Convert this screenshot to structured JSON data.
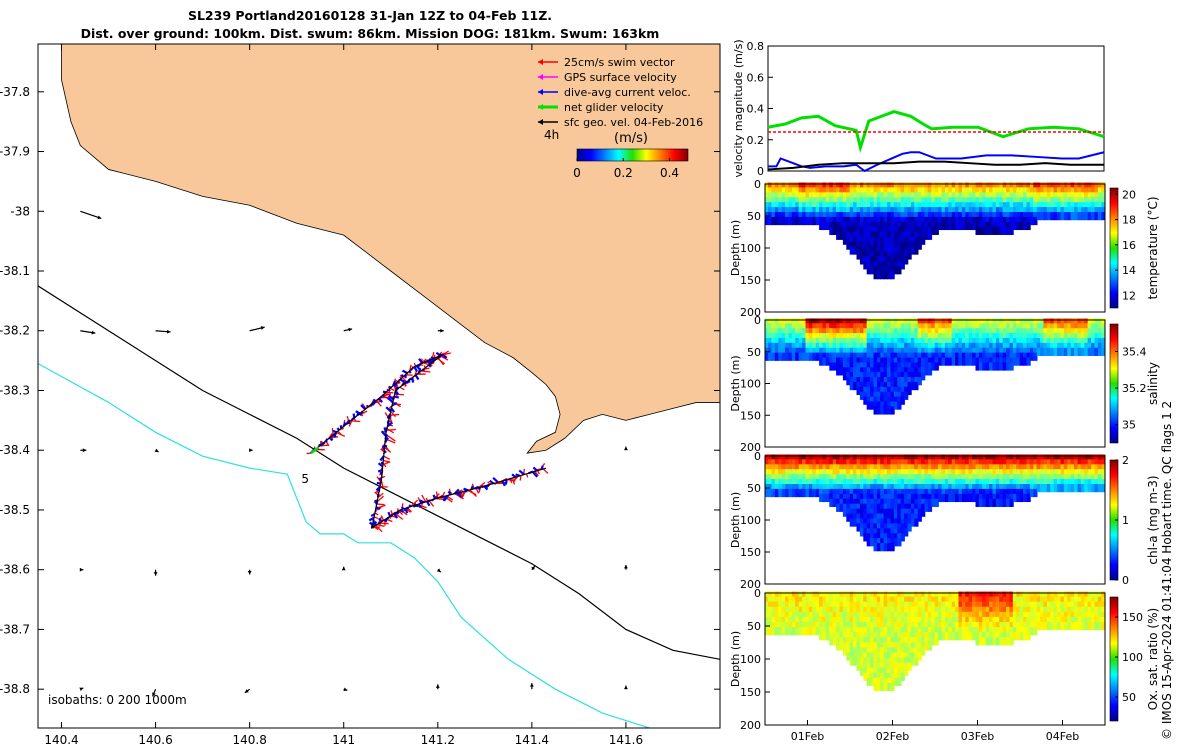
{
  "title_line1": "SL239 Portland20160128 31-Jan 12Z to 04-Feb 11Z.",
  "title_line2": "Dist. over ground: 100km. Dist. swum: 86km. Mission DOG: 181km. Swum: 163km",
  "stamp": "© IMOS 15-Apr-2024 01:41:04 Hobart time. QC flags 1  2",
  "colors": {
    "land": "#F9C89A",
    "isobath200": "#000000",
    "isobath1000": "#2EE0E0",
    "swim": "#FF0000",
    "gps": "#FF00FF",
    "current": "#0000FF",
    "net": "#00E000",
    "geo": "#000000"
  },
  "chart_data": [
    {
      "type": "map",
      "xlim": [
        140.35,
        141.8
      ],
      "ylim": [
        -38.865,
        -37.72
      ],
      "x_ticks": [
        "140.4",
        "140.6",
        "140.8",
        "141",
        "141.2",
        "141.4",
        "141.6"
      ],
      "x_tick_values": [
        140.4,
        140.6,
        140.8,
        141.0,
        141.2,
        141.4,
        141.6
      ],
      "y_ticks": [
        "-37.8",
        "-37.9",
        "-38",
        "-38.1",
        "-38.2",
        "-38.3",
        "-38.4",
        "-38.5",
        "-38.6",
        "-38.7",
        "-38.8"
      ],
      "y_tick_values": [
        -37.8,
        -37.9,
        -38.0,
        -38.1,
        -38.2,
        -38.3,
        -38.4,
        -38.5,
        -38.6,
        -38.7,
        -38.8
      ],
      "legend": [
        {
          "label": "25cm/s swim vector",
          "color": "#FF0000"
        },
        {
          "label": "GPS surface velocity",
          "color": "#FF00FF"
        },
        {
          "label": "dive-avg current veloc.",
          "color": "#0000FF"
        },
        {
          "label": "net glider velocity",
          "color": "#00E000"
        },
        {
          "label": "sfc geo. vel. 04-Feb-2016",
          "color": "#000000"
        }
      ],
      "time_label": "4h",
      "colorbar": {
        "label": "(m/s)",
        "ticks": [
          "0",
          "0.2",
          "0.4"
        ],
        "tick_values": [
          0,
          0.2,
          0.4
        ],
        "range": [
          0,
          0.48
        ]
      },
      "isobath_label": "isobaths: 0   200  1000m",
      "isobath_marker": "5",
      "coastline": [
        [
          140.35,
          -37.72
        ],
        [
          140.4,
          -37.72
        ],
        [
          140.4,
          -37.78
        ],
        [
          140.42,
          -37.85
        ],
        [
          140.44,
          -37.89
        ],
        [
          140.5,
          -37.93
        ],
        [
          140.6,
          -37.95
        ],
        [
          140.7,
          -37.975
        ],
        [
          140.8,
          -37.99
        ],
        [
          140.9,
          -38.02
        ],
        [
          141.0,
          -38.04
        ],
        [
          141.05,
          -38.07
        ],
        [
          141.1,
          -38.1
        ],
        [
          141.15,
          -38.13
        ],
        [
          141.2,
          -38.16
        ],
        [
          141.25,
          -38.19
        ],
        [
          141.3,
          -38.22
        ],
        [
          141.36,
          -38.245
        ],
        [
          141.4,
          -38.27
        ],
        [
          141.43,
          -38.29
        ],
        [
          141.45,
          -38.31
        ],
        [
          141.46,
          -38.34
        ],
        [
          141.45,
          -38.37
        ],
        [
          141.41,
          -38.385
        ],
        [
          141.39,
          -38.405
        ],
        [
          141.43,
          -38.4
        ],
        [
          141.47,
          -38.38
        ],
        [
          141.51,
          -38.35
        ],
        [
          141.55,
          -38.34
        ],
        [
          141.6,
          -38.35
        ],
        [
          141.65,
          -38.34
        ],
        [
          141.7,
          -38.33
        ],
        [
          141.75,
          -38.32
        ],
        [
          141.8,
          -38.32
        ],
        [
          141.8,
          -37.72
        ]
      ],
      "isobath_200": [
        [
          140.35,
          -38.125
        ],
        [
          140.5,
          -38.2
        ],
        [
          140.7,
          -38.3
        ],
        [
          140.8,
          -38.34
        ],
        [
          140.9,
          -38.38
        ],
        [
          141.0,
          -38.43
        ],
        [
          141.1,
          -38.47
        ],
        [
          141.2,
          -38.51
        ],
        [
          141.3,
          -38.55
        ],
        [
          141.4,
          -38.59
        ],
        [
          141.5,
          -38.64
        ],
        [
          141.6,
          -38.7
        ],
        [
          141.7,
          -38.735
        ],
        [
          141.8,
          -38.75
        ]
      ],
      "isobath_1000": [
        [
          140.35,
          -38.255
        ],
        [
          140.5,
          -38.32
        ],
        [
          140.6,
          -38.37
        ],
        [
          140.7,
          -38.41
        ],
        [
          140.8,
          -38.43
        ],
        [
          140.88,
          -38.44
        ],
        [
          140.92,
          -38.52
        ],
        [
          140.95,
          -38.54
        ],
        [
          141.0,
          -38.54
        ],
        [
          141.03,
          -38.555
        ],
        [
          141.1,
          -38.555
        ],
        [
          141.15,
          -38.58
        ],
        [
          141.2,
          -38.62
        ],
        [
          141.25,
          -38.68
        ],
        [
          141.35,
          -38.75
        ],
        [
          141.45,
          -38.8
        ],
        [
          141.55,
          -38.84
        ],
        [
          141.65,
          -38.865
        ]
      ],
      "glider_track": [
        [
          140.93,
          -38.405
        ],
        [
          141.0,
          -38.36
        ],
        [
          141.08,
          -38.31
        ],
        [
          141.15,
          -38.26
        ],
        [
          141.21,
          -38.24
        ],
        [
          141.11,
          -38.3
        ],
        [
          141.09,
          -38.37
        ],
        [
          141.08,
          -38.45
        ],
        [
          141.06,
          -38.53
        ],
        [
          141.12,
          -38.5
        ],
        [
          141.2,
          -38.48
        ],
        [
          141.3,
          -38.46
        ],
        [
          141.43,
          -38.43
        ]
      ],
      "geo_vectors": [
        {
          "lon": 140.44,
          "lat": -38.0,
          "u": 0.035,
          "v": -0.012
        },
        {
          "lon": 140.44,
          "lat": -38.2,
          "u": 0.025,
          "v": -0.004
        },
        {
          "lon": 140.6,
          "lat": -38.2,
          "u": 0.025,
          "v": -0.002
        },
        {
          "lon": 140.8,
          "lat": -38.2,
          "u": 0.025,
          "v": 0.006
        },
        {
          "lon": 141.0,
          "lat": -38.2,
          "u": 0.014,
          "v": 0.003
        },
        {
          "lon": 141.2,
          "lat": -38.2,
          "u": 0.01,
          "v": 0.0
        },
        {
          "lon": 140.44,
          "lat": -38.4,
          "u": 0.01,
          "v": 0.0
        },
        {
          "lon": 140.6,
          "lat": -38.4,
          "u": 0.005,
          "v": -0.003
        },
        {
          "lon": 140.8,
          "lat": -38.4,
          "u": 0.005,
          "v": 0.0
        },
        {
          "lon": 141.6,
          "lat": -38.4,
          "u": 0.0,
          "v": 0.006
        },
        {
          "lon": 140.44,
          "lat": -38.6,
          "u": 0.005,
          "v": 0.0
        },
        {
          "lon": 140.6,
          "lat": -38.6,
          "u": 0.0,
          "v": -0.01
        },
        {
          "lon": 140.8,
          "lat": -38.6,
          "u": 0.0,
          "v": -0.008
        },
        {
          "lon": 141.0,
          "lat": -38.6,
          "u": 0.0,
          "v": 0.005
        },
        {
          "lon": 141.2,
          "lat": -38.6,
          "u": 0.005,
          "v": -0.004
        },
        {
          "lon": 141.4,
          "lat": -38.6,
          "u": 0.005,
          "v": 0.006
        },
        {
          "lon": 141.6,
          "lat": -38.6,
          "u": 0.0,
          "v": 0.008
        },
        {
          "lon": 140.44,
          "lat": -38.8,
          "u": 0.005,
          "v": 0.002
        },
        {
          "lon": 140.6,
          "lat": -38.8,
          "u": -0.005,
          "v": -0.012
        },
        {
          "lon": 140.8,
          "lat": -38.8,
          "u": -0.008,
          "v": -0.006
        },
        {
          "lon": 141.0,
          "lat": -38.8,
          "u": 0.006,
          "v": -0.002
        },
        {
          "lon": 141.2,
          "lat": -38.8,
          "u": 0.0,
          "v": 0.008
        },
        {
          "lon": 141.4,
          "lat": -38.8,
          "u": 0.0,
          "v": 0.01
        },
        {
          "lon": 141.6,
          "lat": -38.8,
          "u": 0.0,
          "v": 0.006
        }
      ]
    },
    {
      "type": "line",
      "ylabel": "velocity magnitude (m/s)",
      "ylim": [
        0,
        0.8
      ],
      "y_ticks": [
        "0",
        "0.2",
        "0.4",
        "0.6",
        "0.8"
      ],
      "y_tick_values": [
        0,
        0.2,
        0.4,
        0.6,
        0.8
      ],
      "xlim": [
        31.5,
        35.5
      ],
      "series": [
        {
          "color": "#00E000",
          "x": [
            31.5,
            31.7,
            31.9,
            32.1,
            32.3,
            32.55,
            32.6,
            32.7,
            32.9,
            33.0,
            33.2,
            33.35,
            33.45,
            33.7,
            34.0,
            34.3,
            34.6,
            34.9,
            35.2,
            35.5
          ],
          "y": [
            0.28,
            0.3,
            0.34,
            0.35,
            0.29,
            0.26,
            0.15,
            0.32,
            0.36,
            0.38,
            0.35,
            0.3,
            0.27,
            0.28,
            0.28,
            0.22,
            0.27,
            0.28,
            0.27,
            0.22
          ]
        },
        {
          "color": "#FF0000",
          "x": [
            31.5,
            35.5
          ],
          "y": [
            0.25,
            0.25
          ]
        },
        {
          "color": "#0000FF",
          "x": [
            31.5,
            31.6,
            31.65,
            31.8,
            31.9,
            32.0,
            32.2,
            32.4,
            32.55,
            32.65,
            32.8,
            33.1,
            33.2,
            33.3,
            33.5,
            33.8,
            34.1,
            34.4,
            34.7,
            35.0,
            35.2,
            35.5
          ],
          "y": [
            0.03,
            0.03,
            0.08,
            0.05,
            0.03,
            0.02,
            0.03,
            0.03,
            0.04,
            0.0,
            0.04,
            0.11,
            0.12,
            0.12,
            0.08,
            0.08,
            0.1,
            0.1,
            0.09,
            0.08,
            0.08,
            0.12
          ]
        },
        {
          "color": "#000000",
          "x": [
            31.5,
            31.8,
            32.1,
            32.4,
            32.7,
            33.0,
            33.3,
            33.6,
            33.9,
            34.2,
            34.5,
            34.8,
            35.1,
            35.5
          ],
          "y": [
            0.01,
            0.02,
            0.04,
            0.05,
            0.05,
            0.05,
            0.06,
            0.06,
            0.05,
            0.04,
            0.04,
            0.05,
            0.04,
            0.04
          ]
        }
      ]
    },
    {
      "type": "heatmap",
      "variable": "temperature",
      "ylabel": "Depth (m)",
      "clabel": "temperature (°C)",
      "ylim": [
        0,
        200
      ],
      "y_ticks": [
        "0",
        "50",
        "100",
        "150",
        "200"
      ],
      "y_tick_values": [
        0,
        50,
        100,
        150,
        200
      ],
      "crange": [
        11,
        20.5
      ],
      "c_ticks": [
        "12",
        "14",
        "16",
        "18",
        "20"
      ],
      "c_tick_values": [
        12,
        14,
        16,
        18,
        20
      ],
      "surface_value": 18.5,
      "deep_value": 11.5,
      "surface_spans": [
        [
          31.9,
          32.5,
          19.5
        ],
        [
          34.65,
          35.4,
          19.3
        ]
      ]
    },
    {
      "type": "heatmap",
      "variable": "salinity",
      "ylabel": "Depth (m)",
      "clabel": "salinity",
      "ylim": [
        0,
        200
      ],
      "y_ticks": [
        "0",
        "50",
        "100",
        "150",
        "200"
      ],
      "y_tick_values": [
        0,
        50,
        100,
        150,
        200
      ],
      "crange": [
        34.9,
        35.55
      ],
      "c_ticks": [
        "35",
        "35.2",
        "35.4"
      ],
      "c_tick_values": [
        35.0,
        35.2,
        35.4
      ],
      "surface_value": 35.3,
      "deep_value": 35.0,
      "surface_spans": [
        [
          32.0,
          32.7,
          35.55
        ],
        [
          33.3,
          33.7,
          35.45
        ],
        [
          34.8,
          35.3,
          35.45
        ]
      ]
    },
    {
      "type": "heatmap",
      "variable": "chl-a",
      "ylabel": "Depth (m)",
      "clabel": "chl-a (mg m-3)",
      "ylim": [
        0,
        200
      ],
      "y_ticks": [
        "0",
        "50",
        "100",
        "150",
        "200"
      ],
      "y_tick_values": [
        0,
        50,
        100,
        150,
        200
      ],
      "crange": [
        0,
        2
      ],
      "c_ticks": [
        "0",
        "1",
        "2"
      ],
      "c_tick_values": [
        0,
        1,
        2
      ],
      "surface_value": 2.0,
      "deep_value": 0.3,
      "surface_spans": [
        [
          31.5,
          32.2,
          2.0
        ],
        [
          33.3,
          34.3,
          2.0
        ]
      ]
    },
    {
      "type": "heatmap",
      "variable": "Ox. sat. ratio",
      "ylabel": "Depth (m)",
      "clabel": "Ox. sat. ratio (%)",
      "ylim": [
        0,
        200
      ],
      "y_ticks": [
        "0",
        "50",
        "100",
        "150",
        "200"
      ],
      "y_tick_values": [
        0,
        50,
        100,
        150,
        200
      ],
      "crange": [
        20,
        175
      ],
      "c_ticks": [
        "50",
        "100",
        "150"
      ],
      "c_tick_values": [
        50,
        100,
        150
      ],
      "surface_value": 120,
      "deep_value": 110,
      "surface_spans": [
        [
          33.8,
          34.4,
          155
        ]
      ],
      "x_ticks": [
        "01Feb",
        "02Feb",
        "03Feb",
        "04Feb"
      ],
      "x_tick_values": [
        32,
        33,
        34,
        35
      ]
    }
  ]
}
